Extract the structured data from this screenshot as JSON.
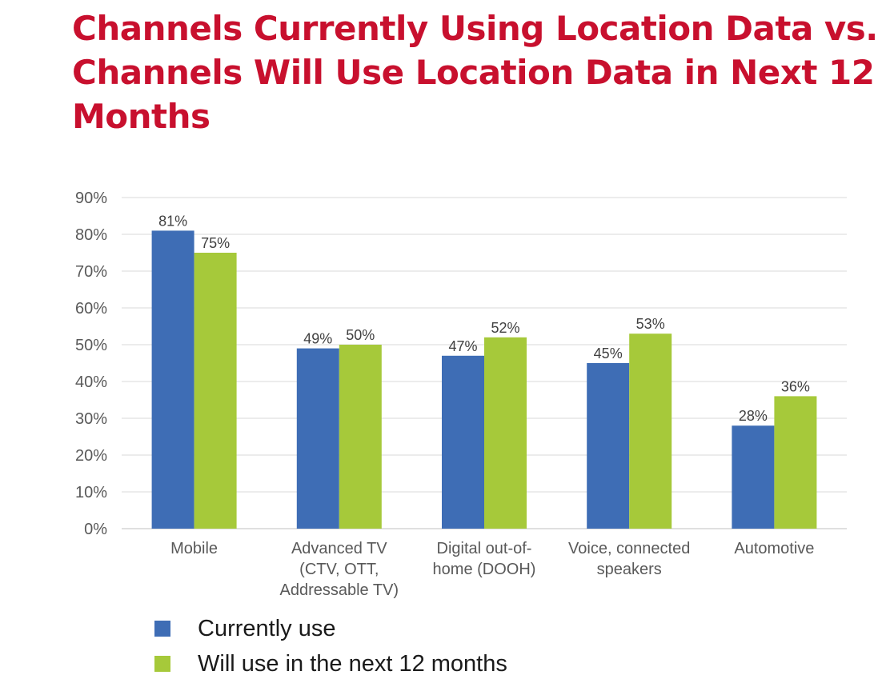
{
  "title_lines": [
    "Channels Currently Using Location Data vs.",
    "Channels Will Use Location Data in Next 12",
    "Months"
  ],
  "chart_data": {
    "type": "bar",
    "title": "Channels Currently Using Location Data vs. Channels Will Use Location Data in Next 12 Months",
    "categories": [
      [
        "Mobile"
      ],
      [
        "Advanced TV",
        "(CTV, OTT,",
        "Addressable TV)"
      ],
      [
        "Digital out-of-",
        "home (DOOH)"
      ],
      [
        "Voice, connected",
        "speakers"
      ],
      [
        "Automotive"
      ]
    ],
    "series": [
      {
        "name": "Currently use",
        "color": "#3e6db5",
        "values": [
          81,
          49,
          47,
          45,
          28
        ],
        "labels": [
          "81%",
          "49%",
          "47%",
          "45%",
          "28%"
        ]
      },
      {
        "name": "Will use in the next 12 months",
        "color": "#a6c93a",
        "values": [
          75,
          50,
          52,
          53,
          36
        ],
        "labels": [
          "75%",
          "50%",
          "52%",
          "53%",
          "36%"
        ]
      }
    ],
    "ylim": [
      0,
      90
    ],
    "yticks": [
      {
        "value": 0,
        "label": "0%"
      },
      {
        "value": 10,
        "label": "10%"
      },
      {
        "value": 20,
        "label": "20%"
      },
      {
        "value": 30,
        "label": "30%"
      },
      {
        "value": 40,
        "label": "40%"
      },
      {
        "value": 50,
        "label": "50%"
      },
      {
        "value": 60,
        "label": "60%"
      },
      {
        "value": 70,
        "label": "70%"
      },
      {
        "value": 80,
        "label": "80%"
      },
      {
        "value": 90,
        "label": "90%"
      }
    ],
    "grid": true,
    "legend": "bottom-left"
  }
}
